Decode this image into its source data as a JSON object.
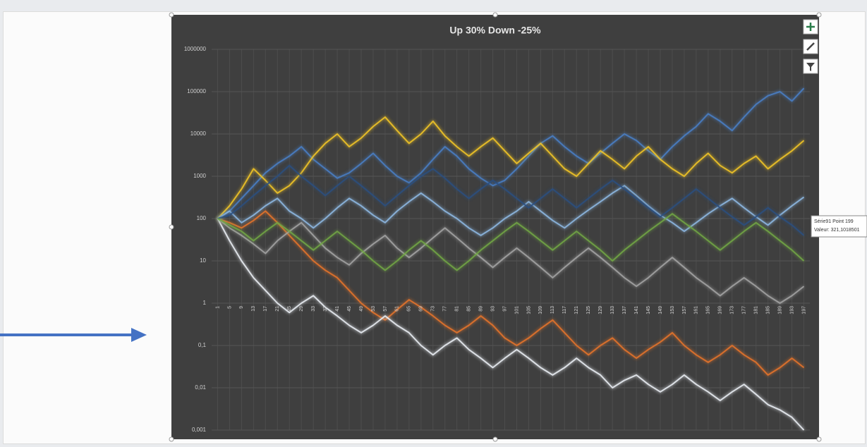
{
  "chart_data": {
    "type": "line",
    "title": "Up 30% Down -25%",
    "log": true,
    "ylim": [
      0.001,
      1000000
    ],
    "yticks": [
      {
        "value": 0.001,
        "label": "0,001"
      },
      {
        "value": 0.01,
        "label": "0,01"
      },
      {
        "value": 0.1,
        "label": "0,1"
      },
      1,
      10,
      100,
      1000,
      10000,
      100000,
      1000000
    ],
    "grid": true,
    "categories": [
      1,
      5,
      9,
      13,
      17,
      21,
      25,
      29,
      33,
      37,
      41,
      45,
      49,
      53,
      57,
      61,
      65,
      69,
      73,
      77,
      81,
      85,
      89,
      93,
      97,
      101,
      105,
      109,
      113,
      117,
      121,
      125,
      129,
      133,
      137,
      141,
      145,
      149,
      153,
      157,
      161,
      165,
      169,
      173,
      177,
      181,
      185,
      189,
      193,
      197
    ],
    "series": [
      {
        "color": "#4a80c8",
        "values": [
          100,
          150,
          300,
          600,
          1200,
          2000,
          3000,
          5000,
          2500,
          1500,
          900,
          1200,
          2000,
          3500,
          1800,
          1000,
          700,
          1200,
          2500,
          5000,
          3000,
          1500,
          900,
          600,
          800,
          1500,
          3000,
          6000,
          9000,
          5000,
          3000,
          2000,
          3500,
          6000,
          10000,
          7000,
          4000,
          2500,
          5000,
          9000,
          15000,
          30000,
          20000,
          12000,
          25000,
          50000,
          80000,
          100000,
          60000,
          120000
        ]
      },
      {
        "color": "#e8742a",
        "values": [
          100,
          80,
          60,
          90,
          150,
          80,
          40,
          20,
          10,
          6,
          4,
          2,
          1,
          0.6,
          0.4,
          0.7,
          1.2,
          0.8,
          0.5,
          0.3,
          0.2,
          0.3,
          0.5,
          0.3,
          0.15,
          0.1,
          0.15,
          0.25,
          0.4,
          0.2,
          0.1,
          0.06,
          0.1,
          0.15,
          0.08,
          0.05,
          0.08,
          0.12,
          0.2,
          0.1,
          0.06,
          0.04,
          0.06,
          0.1,
          0.06,
          0.04,
          0.02,
          0.03,
          0.05,
          0.03
        ]
      },
      {
        "color": "#f5c826",
        "values": [
          100,
          200,
          500,
          1500,
          800,
          400,
          600,
          1200,
          3000,
          6000,
          10000,
          5000,
          8000,
          15000,
          25000,
          12000,
          6000,
          10000,
          20000,
          9000,
          5000,
          3000,
          5000,
          8000,
          4000,
          2000,
          3500,
          6000,
          3000,
          1500,
          1000,
          2000,
          4000,
          2500,
          1500,
          3000,
          5000,
          2500,
          1500,
          1000,
          2000,
          3500,
          1800,
          1200,
          2000,
          3000,
          1500,
          2500,
          4000,
          7000
        ]
      },
      {
        "color": "#eef2f8",
        "values": [
          100,
          30,
          10,
          4,
          2,
          1,
          0.6,
          1,
          1.5,
          0.8,
          0.5,
          0.3,
          0.2,
          0.3,
          0.5,
          0.3,
          0.2,
          0.1,
          0.06,
          0.1,
          0.15,
          0.08,
          0.05,
          0.03,
          0.05,
          0.08,
          0.05,
          0.03,
          0.02,
          0.03,
          0.05,
          0.03,
          0.02,
          0.01,
          0.015,
          0.02,
          0.012,
          0.008,
          0.012,
          0.02,
          0.012,
          0.008,
          0.005,
          0.008,
          0.012,
          0.007,
          0.004,
          0.003,
          0.002,
          0.001
        ]
      },
      {
        "color": "#8fbbe6",
        "values": [
          100,
          150,
          80,
          120,
          200,
          300,
          150,
          100,
          60,
          100,
          180,
          300,
          200,
          120,
          80,
          150,
          250,
          400,
          250,
          150,
          100,
          60,
          40,
          60,
          100,
          150,
          250,
          150,
          90,
          60,
          100,
          160,
          250,
          400,
          600,
          350,
          200,
          120,
          80,
          50,
          80,
          130,
          200,
          300,
          180,
          110,
          70,
          120,
          200,
          321
        ]
      },
      {
        "color": "#a5a5a5",
        "values": [
          100,
          60,
          40,
          25,
          15,
          30,
          50,
          80,
          40,
          20,
          12,
          8,
          15,
          25,
          40,
          20,
          12,
          20,
          35,
          60,
          35,
          20,
          12,
          7,
          12,
          20,
          12,
          7,
          4,
          7,
          12,
          20,
          12,
          7,
          4,
          2.5,
          4,
          7,
          12,
          7,
          4,
          2.5,
          1.5,
          2.5,
          4,
          2.5,
          1.5,
          1,
          1.5,
          2.5
        ]
      },
      {
        "color": "#2b4f80",
        "values": [
          100,
          120,
          200,
          350,
          600,
          1000,
          1800,
          1000,
          600,
          350,
          600,
          1000,
          600,
          350,
          200,
          350,
          600,
          1000,
          1500,
          900,
          500,
          300,
          500,
          800,
          500,
          300,
          180,
          300,
          500,
          300,
          180,
          300,
          500,
          800,
          500,
          300,
          180,
          110,
          180,
          300,
          500,
          300,
          180,
          110,
          70,
          110,
          180,
          110,
          70,
          40
        ]
      },
      {
        "color": "#72a844",
        "values": [
          100,
          70,
          50,
          30,
          50,
          80,
          50,
          30,
          18,
          30,
          50,
          30,
          18,
          10,
          6,
          10,
          18,
          30,
          18,
          10,
          6,
          10,
          18,
          30,
          50,
          80,
          50,
          30,
          18,
          30,
          50,
          30,
          18,
          10,
          18,
          30,
          50,
          80,
          130,
          80,
          50,
          30,
          18,
          30,
          50,
          80,
          50,
          30,
          18,
          10
        ]
      }
    ],
    "tooltip": [
      "Série91 Point 199",
      "Valeur: 321,1018501"
    ]
  }
}
